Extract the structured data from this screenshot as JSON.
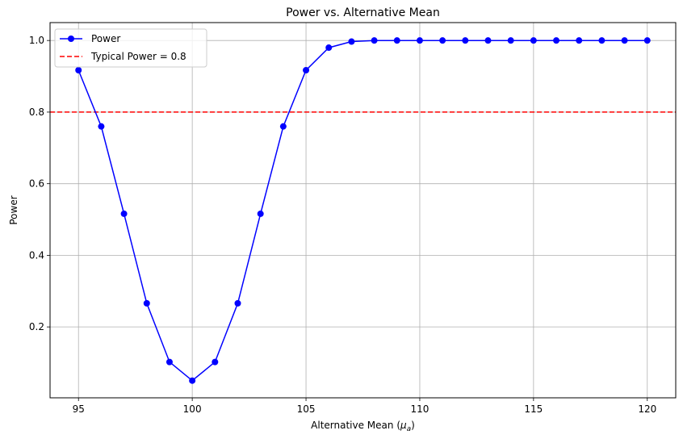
{
  "chart_data": {
    "type": "line",
    "title": "Power vs. Alternative Mean",
    "xlabel_prefix": "Alternative Mean (",
    "xlabel_math_base": "μ",
    "xlabel_math_sub": "a",
    "xlabel_suffix": ")",
    "ylabel": "Power",
    "xlim": [
      93.75,
      121.25
    ],
    "ylim": [
      0.002,
      1.05
    ],
    "xticks": [
      95,
      100,
      105,
      110,
      115,
      120
    ],
    "xtick_labels": [
      "95",
      "100",
      "105",
      "110",
      "115",
      "120"
    ],
    "yticks": [
      0.2,
      0.4,
      0.6,
      0.8,
      1.0
    ],
    "ytick_labels": [
      "0.2",
      "0.4",
      "0.6",
      "0.8",
      "1.0"
    ],
    "grid": true,
    "legend_position": "top-left",
    "series": [
      {
        "name": "Power",
        "color": "#0000ff",
        "marker": "circle",
        "x": [
          95,
          96,
          97,
          98,
          99,
          100,
          101,
          102,
          103,
          104,
          105,
          106,
          107,
          108,
          109,
          110,
          111,
          112,
          113,
          114,
          115,
          116,
          117,
          118,
          119,
          120
        ],
        "y": [
          0.917,
          0.76,
          0.516,
          0.266,
          0.102,
          0.05,
          0.102,
          0.266,
          0.516,
          0.76,
          0.917,
          0.98,
          0.997,
          1.0,
          1.0,
          1.0,
          1.0,
          1.0,
          1.0,
          1.0,
          1.0,
          1.0,
          1.0,
          1.0,
          1.0,
          1.0
        ]
      }
    ],
    "reference_lines": [
      {
        "name": "Typical Power = 0.8",
        "y": 0.8,
        "color": "#ff0000",
        "style": "dashed"
      }
    ]
  }
}
